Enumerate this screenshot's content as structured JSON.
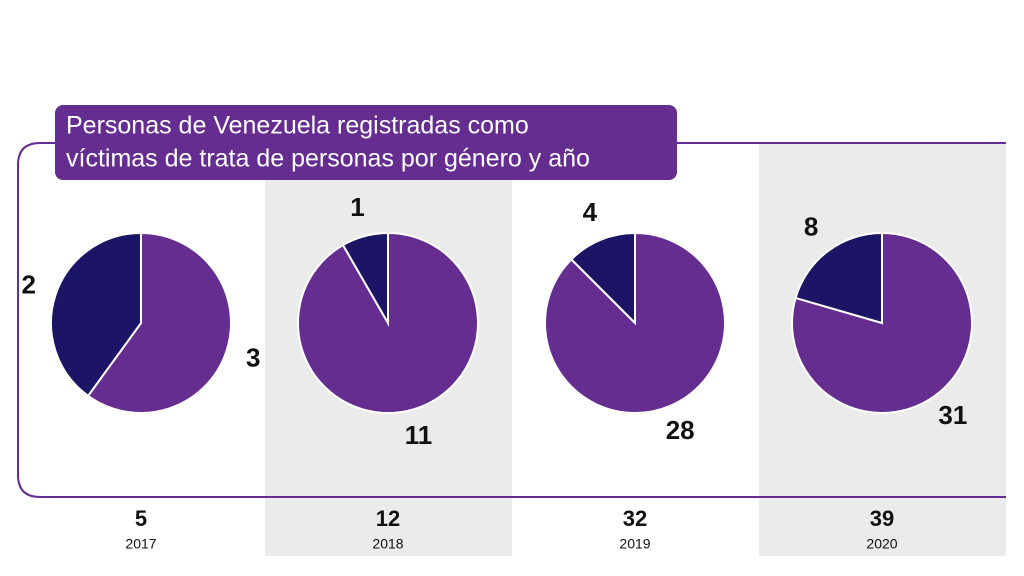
{
  "title": [
    "Personas de Venezuela registradas como",
    "víctimas de trata de personas por género y año"
  ],
  "chart_data": [
    {
      "type": "pie",
      "total": 5,
      "year": "2017",
      "values": [
        3,
        2
      ],
      "colors": [
        "#662d91",
        "#1c1464"
      ]
    },
    {
      "type": "pie",
      "total": 12,
      "year": "2018",
      "values": [
        11,
        1
      ],
      "colors": [
        "#662d91",
        "#1c1464"
      ]
    },
    {
      "type": "pie",
      "total": 32,
      "year": "2019",
      "values": [
        28,
        4
      ],
      "colors": [
        "#662d91",
        "#1c1464"
      ]
    },
    {
      "type": "pie",
      "total": 39,
      "year": "2020",
      "values": [
        31,
        8
      ],
      "colors": [
        "#662d91",
        "#1c1464"
      ]
    }
  ]
}
